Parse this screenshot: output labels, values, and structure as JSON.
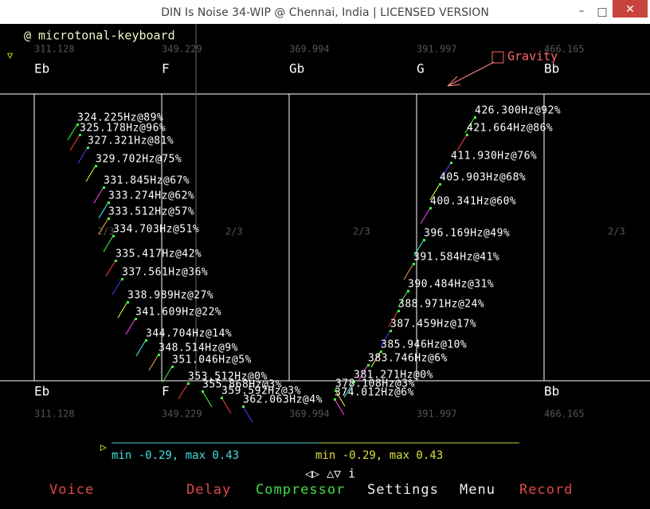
{
  "window": {
    "title": "DIN Is Noise 34-WIP @ Chennai, India | LICENSED VERSION",
    "controls": [
      "–",
      "□",
      "✕"
    ]
  },
  "header": {
    "mode": "@ microtonal-keyboard",
    "marker": "▽"
  },
  "keyboard": {
    "top_notes": [
      {
        "note": "Eb",
        "freq": "311.128"
      },
      {
        "note": "F",
        "freq": "349.229"
      },
      {
        "note": "Gb",
        "freq": "369.994"
      },
      {
        "note": "G",
        "freq": "391.997"
      },
      {
        "note": "Bb",
        "freq": "466.165"
      }
    ],
    "bottom_notes": [
      {
        "note": "Eb",
        "freq": "311.128"
      },
      {
        "note": "F",
        "freq": "349.229"
      },
      {
        "note": "",
        "freq": "369.994"
      },
      {
        "note": "",
        "freq": "391.997"
      },
      {
        "note": "Bb",
        "freq": "466.165"
      }
    ],
    "ratios": [
      "2/3",
      "2/3",
      "2/3",
      "2/3"
    ],
    "gravity": "Gravity",
    "particles_left": [
      "324.225Hz@89%",
      "325.178Hz@96%",
      "327.321Hz@81%",
      "329.702Hz@75%",
      "331.845Hz@67%",
      "333.274Hz@62%",
      "333.512Hz@57%",
      "334.703Hz@51%",
      "335.417Hz@42%",
      "337.561Hz@36%",
      "338.989Hz@27%",
      "341.609Hz@22%",
      "344.704Hz@14%",
      "348.514Hz@9%",
      "351.046Hz@5%",
      "353.512Hz@0%"
    ],
    "particles_right": [
      "426.300Hz@92%",
      "421.664Hz@86%",
      "411.930Hz@76%",
      "405.903Hz@68%",
      "400.341Hz@60%",
      "396.169Hz@49%",
      "391.584Hz@41%",
      "390.484Hz@31%",
      "388.971Hz@24%",
      "387.459Hz@17%",
      "385.946Hz@10%",
      "383.746Hz@6%",
      "381.271Hz@0%"
    ],
    "particles_bottom": [
      "355.868Hz@3%",
      "359.592Hz@3%",
      "362.063Hz@4%",
      "378.108Hz@3%",
      "374.012Hz@6%"
    ]
  },
  "status": {
    "range_left": "min -0.29, max 0.43",
    "range_right": "min -0.29, max 0.43",
    "nav": "◁▷ △▽ i",
    "play": "▷"
  },
  "menu": [
    "Voice",
    "Delay",
    "Compressor",
    "Settings",
    "Menu",
    "Record"
  ]
}
